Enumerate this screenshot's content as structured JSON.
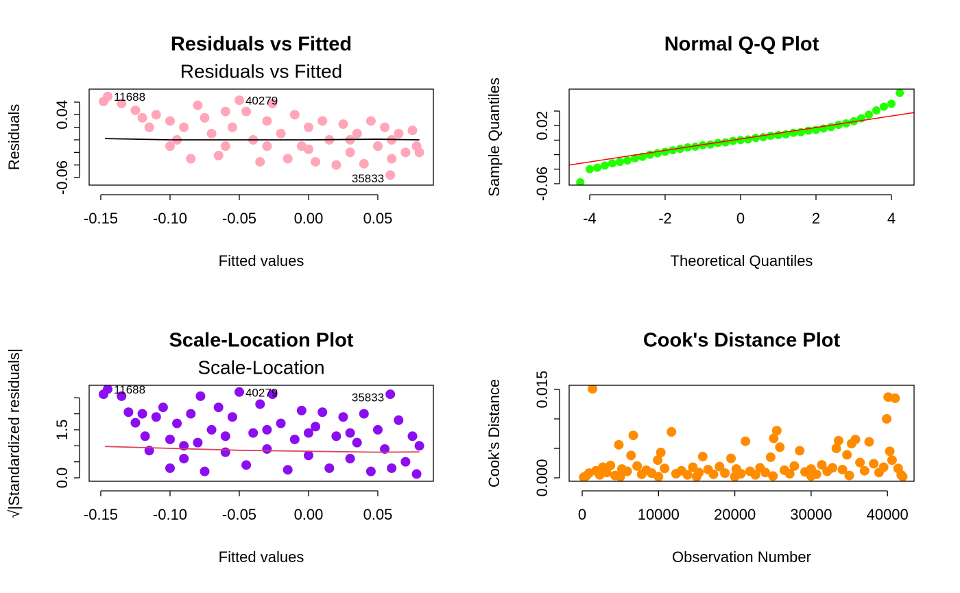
{
  "chart_data": [
    {
      "type": "scatter",
      "title": "Residuals vs Fitted",
      "subtitle": "Residuals vs Fitted",
      "xlabel": "Fitted values",
      "ylabel": "Residuals",
      "color": "#ffa6b9",
      "xlim": [
        -0.1584,
        0.0901
      ],
      "ylim": [
        -0.072,
        0.0807
      ],
      "xticks": [
        -0.15,
        {
          "value": -0.1,
          "label": "-0.10"
        },
        -0.05,
        {
          "value": 0,
          "label": "0.00"
        },
        0.05
      ],
      "yticks": [
        -0.06,
        0.04
      ],
      "yminor_ticks": [
        -0.04,
        -0.02,
        0,
        0.02,
        0.06
      ],
      "x": [
        -0.148,
        -0.145,
        -0.135,
        -0.125,
        -0.12,
        -0.115,
        -0.11,
        -0.1,
        -0.1,
        -0.09,
        -0.085,
        -0.08,
        -0.075,
        -0.07,
        -0.065,
        -0.06,
        -0.055,
        -0.05,
        -0.045,
        -0.04,
        -0.035,
        -0.03,
        -0.026,
        -0.02,
        -0.015,
        -0.01,
        -0.005,
        0.0,
        0.005,
        0.01,
        0.015,
        0.02,
        0.025,
        0.03,
        0.035,
        0.04,
        0.045,
        0.05,
        0.055,
        0.059,
        0.06,
        0.065,
        0.07,
        0.075,
        0.078,
        0.08,
        -0.095,
        -0.06,
        -0.03,
        0.0,
        0.03,
        0.06
      ],
      "values": [
        0.061,
        0.069,
        0.058,
        0.047,
        0.035,
        0.02,
        0.04,
        0.03,
        -0.01,
        0.02,
        -0.03,
        0.055,
        0.035,
        0.01,
        -0.025,
        0.045,
        0.02,
        0.063,
        0.045,
        0.0,
        -0.035,
        0.03,
        0.058,
        0.01,
        -0.03,
        0.04,
        -0.01,
        0.02,
        -0.035,
        0.03,
        0.0,
        -0.04,
        0.025,
        -0.02,
        0.01,
        -0.038,
        0.03,
        -0.01,
        0.02,
        -0.056,
        -0.03,
        0.01,
        -0.02,
        0.015,
        -0.01,
        -0.02,
        0.0,
        -0.01,
        -0.01,
        -0.015,
        0.0,
        0.0
      ],
      "smooth": {
        "color": "#000000",
        "x": [
          -0.147,
          -0.1,
          -0.05,
          0,
          0.05,
          0.08
        ],
        "values": [
          0.002,
          0.0,
          0.0,
          0.0,
          0.001,
          0.0
        ]
      },
      "annotations": [
        {
          "text": "11688",
          "x": -0.145,
          "y": 0.069
        },
        {
          "text": "40279",
          "x": -0.05,
          "y": 0.063
        },
        {
          "text": "35833",
          "x": 0.059,
          "y": -0.056
        }
      ]
    },
    {
      "type": "scatter",
      "title": "Normal Q-Q Plot",
      "xlabel": "Theoretical Quantiles",
      "ylabel": "Sample Quantiles",
      "color": "#22ff00",
      "xlim": [
        -4.545,
        4.6
      ],
      "ylim": [
        -0.0619,
        0.0702
      ],
      "xticks": [
        -4,
        -2,
        0,
        2,
        4
      ],
      "yticks": [
        -0.06,
        0.02
      ],
      "yminor_ticks": [
        -0.04,
        -0.02,
        0,
        0.04
      ],
      "x": [
        -4.25,
        -4.0,
        -3.8,
        -3.6,
        -3.4,
        -3.2,
        -3.0,
        -2.8,
        -2.6,
        -2.4,
        -2.2,
        -2.0,
        -1.8,
        -1.6,
        -1.4,
        -1.2,
        -1.0,
        -0.8,
        -0.6,
        -0.4,
        -0.2,
        0,
        0.2,
        0.4,
        0.6,
        0.8,
        1.0,
        1.2,
        1.4,
        1.6,
        1.8,
        2.0,
        2.2,
        2.4,
        2.6,
        2.8,
        3.0,
        3.2,
        3.4,
        3.6,
        3.8,
        4.0,
        4.22
      ],
      "values": [
        -0.058,
        -0.04,
        -0.038,
        -0.035,
        -0.032,
        -0.03,
        -0.028,
        -0.025,
        -0.023,
        -0.02,
        -0.018,
        -0.016,
        -0.014,
        -0.012,
        -0.01,
        -0.009,
        -0.007,
        -0.006,
        -0.004,
        -0.003,
        -0.001,
        0.0,
        0.001,
        0.003,
        0.004,
        0.006,
        0.007,
        0.008,
        0.01,
        0.011,
        0.013,
        0.014,
        0.016,
        0.018,
        0.021,
        0.023,
        0.026,
        0.03,
        0.035,
        0.041,
        0.046,
        0.05,
        0.065
      ],
      "ref_line": {
        "color": "#ff0000",
        "intercept": 0.0016,
        "slope": 0.0079
      }
    },
    {
      "type": "scatter",
      "title": "Scale-Location Plot",
      "subtitle": "Scale-Location",
      "xlabel": "Fitted values",
      "ylabel": "√|Standardized residuals|",
      "color": "#8b0ef0",
      "xlim": [
        -0.1584,
        0.0901
      ],
      "ylim": [
        -0.107,
        2.89
      ],
      "xticks": [
        -0.15,
        {
          "value": -0.1,
          "label": "-0.10"
        },
        -0.05,
        {
          "value": 0,
          "label": "0.00"
        },
        0.05
      ],
      "yticks": [
        {
          "value": 0,
          "label": "0.0"
        },
        1.5
      ],
      "yminor_ticks": [
        0.5,
        1.0,
        2.0,
        2.5
      ],
      "x": [
        -0.148,
        -0.145,
        -0.135,
        -0.13,
        -0.125,
        -0.12,
        -0.118,
        -0.115,
        -0.11,
        -0.105,
        -0.1,
        -0.1,
        -0.095,
        -0.09,
        -0.085,
        -0.08,
        -0.078,
        -0.075,
        -0.07,
        -0.065,
        -0.06,
        -0.055,
        -0.05,
        -0.045,
        -0.04,
        -0.035,
        -0.03,
        -0.026,
        -0.02,
        -0.015,
        -0.01,
        -0.005,
        0.0,
        0.005,
        0.01,
        0.015,
        0.02,
        0.025,
        0.03,
        0.035,
        0.04,
        0.045,
        0.05,
        0.055,
        0.059,
        0.06,
        0.065,
        0.07,
        0.075,
        0.08,
        0.078,
        -0.09,
        -0.06,
        -0.03,
        0.0,
        0.03
      ],
      "values": [
        2.61,
        2.77,
        2.55,
        2.05,
        1.72,
        2.0,
        1.3,
        0.85,
        1.9,
        2.2,
        0.3,
        1.2,
        1.7,
        0.6,
        2.0,
        1.1,
        2.55,
        0.2,
        1.5,
        2.2,
        0.8,
        1.9,
        2.68,
        0.4,
        1.4,
        2.3,
        0.9,
        2.61,
        1.7,
        0.25,
        1.2,
        2.1,
        0.7,
        1.6,
        2.05,
        0.3,
        1.3,
        1.9,
        0.6,
        1.1,
        2.0,
        0.2,
        1.5,
        0.9,
        2.61,
        0.3,
        1.8,
        0.5,
        1.3,
        1.0,
        0.12,
        1.0,
        1.3,
        1.5,
        1.4,
        1.4
      ],
      "smooth": {
        "color": "#d8435c",
        "x": [
          -0.147,
          -0.1,
          -0.05,
          0,
          0.05,
          0.08
        ],
        "values": [
          0.98,
          0.92,
          0.86,
          0.83,
          0.8,
          0.81
        ]
      },
      "annotations": [
        {
          "text": "11688",
          "x": -0.145,
          "y": 2.77
        },
        {
          "text": "40279",
          "x": -0.05,
          "y": 2.68
        },
        {
          "text": "35833",
          "x": 0.059,
          "y": 2.61
        }
      ]
    },
    {
      "type": "scatter",
      "title": "Cook's Distance Plot",
      "xlabel": "Observation Number",
      "ylabel": "Cook's Distance",
      "color": "#ff8c00",
      "xlim": [
        -1707,
        43486
      ],
      "ylim": [
        -0.00058,
        0.0157
      ],
      "xticks": [
        0,
        10000,
        20000,
        30000,
        40000
      ],
      "yticks": [
        {
          "value": 0,
          "label": "0.000"
        },
        0.015
      ],
      "yminor_ticks": [
        0.005,
        0.01
      ],
      "x": [
        200,
        500,
        900,
        1348,
        1800,
        2300,
        2700,
        3200,
        3700,
        4300,
        4800,
        5200,
        5900,
        6400,
        6700,
        7200,
        7800,
        8400,
        9100,
        9900,
        10300,
        10800,
        11700,
        12300,
        13000,
        13800,
        14500,
        15300,
        15800,
        16500,
        17200,
        18000,
        18700,
        19500,
        20200,
        20800,
        21400,
        22000,
        22700,
        23300,
        24000,
        24700,
        25100,
        25500,
        25900,
        26500,
        27200,
        27800,
        28500,
        29200,
        30000,
        30700,
        31400,
        32100,
        32800,
        33300,
        33600,
        34100,
        34700,
        35300,
        35800,
        36400,
        37000,
        37600,
        38200,
        38900,
        39500,
        39900,
        40100,
        40300,
        40600,
        41000,
        41400,
        41800,
        42000,
        15000,
        30000,
        10000,
        20000,
        35000,
        5000,
        25000
      ],
      "values": [
        0.0001,
        0.0003,
        0.0008,
        0.0151,
        0.0012,
        0.0005,
        0.0018,
        0.0009,
        0.0021,
        0.0004,
        0.0056,
        0.0015,
        0.0011,
        0.0038,
        0.0072,
        0.002,
        0.0006,
        0.0013,
        0.0008,
        0.003,
        0.0043,
        0.0016,
        0.0078,
        0.0007,
        0.0012,
        0.0005,
        0.0018,
        0.0009,
        0.0036,
        0.0014,
        0.0006,
        0.0019,
        0.0008,
        0.0033,
        0.0015,
        0.0007,
        0.0062,
        0.0011,
        0.0005,
        0.0017,
        0.0009,
        0.0035,
        0.0067,
        0.008,
        0.0052,
        0.0013,
        0.0007,
        0.002,
        0.0046,
        0.001,
        0.0015,
        0.0006,
        0.0022,
        0.0011,
        0.0017,
        0.005,
        0.0063,
        0.0014,
        0.0039,
        0.0058,
        0.0065,
        0.0026,
        0.0012,
        0.0061,
        0.0024,
        0.0009,
        0.0018,
        0.01,
        0.0137,
        0.0045,
        0.003,
        0.0135,
        0.0016,
        0.0005,
        0.0002,
        0.0002,
        0.0003,
        0.0002,
        0.0002,
        0.0004,
        0.0002,
        0.0003
      ]
    }
  ]
}
